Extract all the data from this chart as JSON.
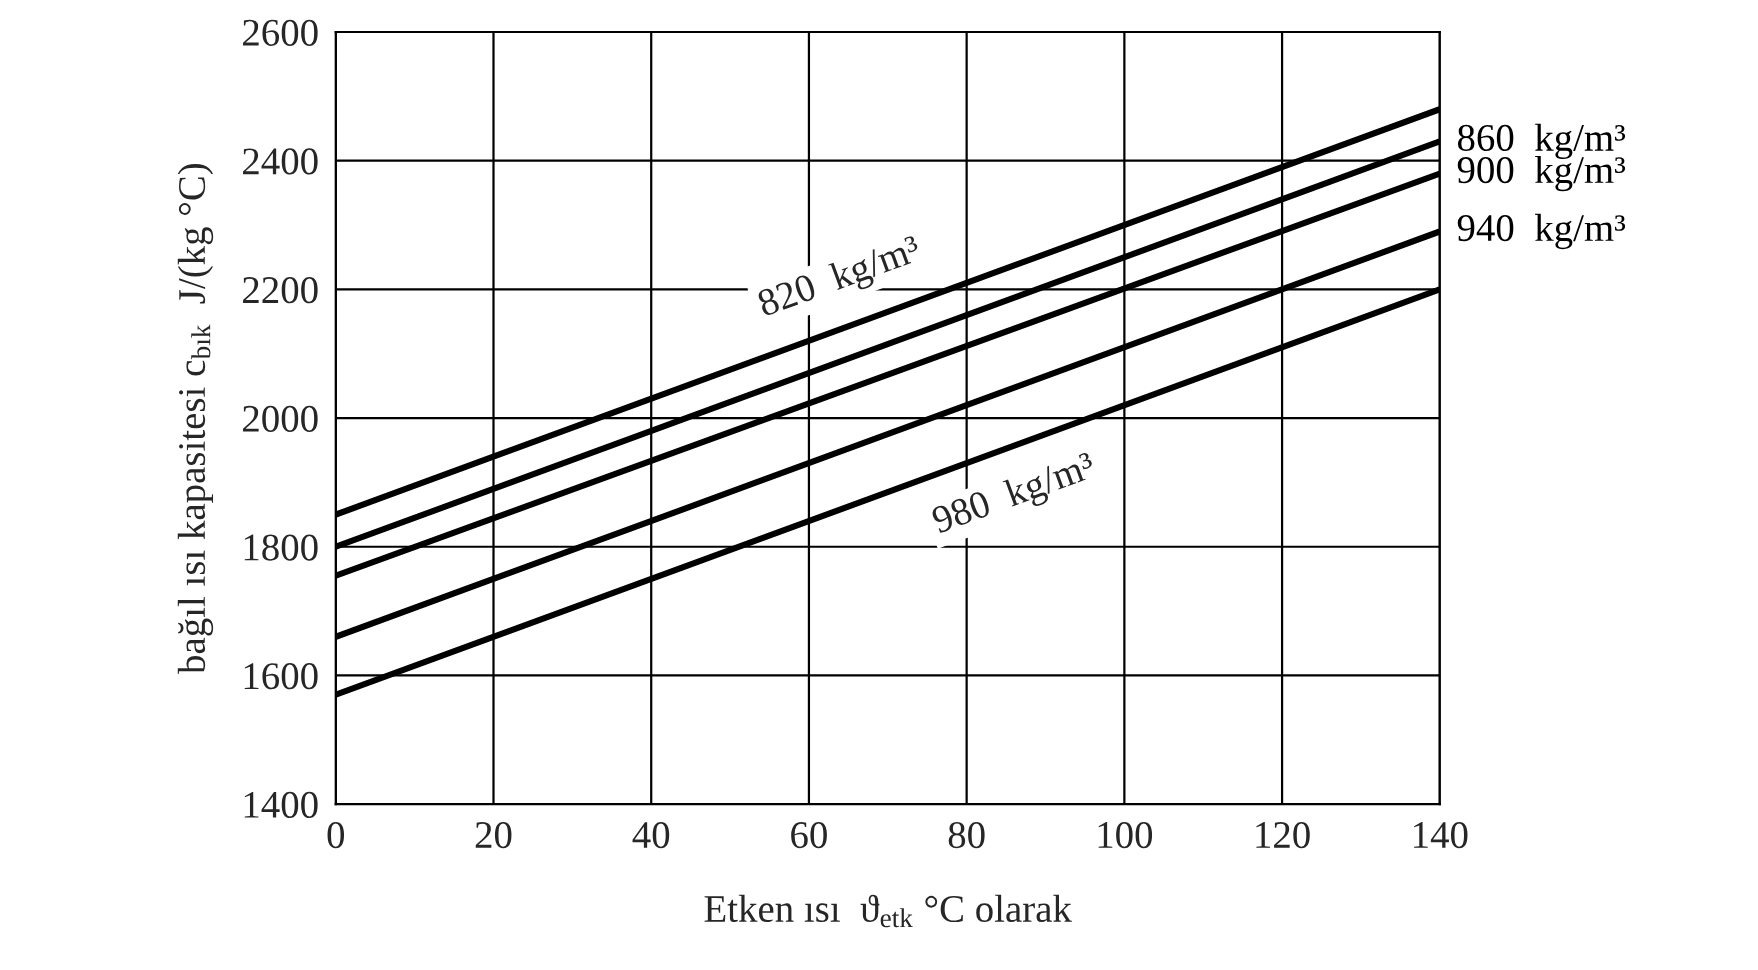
{
  "chart_data": {
    "type": "line",
    "xlabel": "Etken ısı  ϑ$_{etk}$ °C olarak",
    "ylabel": "bağıl ısı kapasitesi c$_{bık}$  J/(kg °C)",
    "x": [
      0,
      140
    ],
    "series": [
      {
        "color": "#000000",
        "values": [
          1850,
          2480
        ]
      },
      {
        "name": "860  kg/m³",
        "color": "#000000",
        "values": [
          1800,
          2430
        ]
      },
      {
        "name": "900  kg/m³",
        "color": "#000000",
        "values": [
          1755,
          2380
        ]
      },
      {
        "name": "940  kg/m³",
        "color": "#000000",
        "values": [
          1660,
          2290
        ]
      },
      {
        "color": "#000000",
        "values": [
          1570,
          2200
        ]
      }
    ],
    "annotations": [
      {
        "text": "820  kg/m³",
        "x": 66,
        "y": 2147
      },
      {
        "text": "980  kg/m³",
        "x": 84,
        "y": 1948
      }
    ],
    "xlim": [
      0,
      140
    ],
    "xticks": [
      0,
      20,
      40,
      60,
      80,
      100,
      120,
      140
    ],
    "ylim": [
      1400,
      2600
    ],
    "yticks": [
      1400,
      1600,
      1800,
      2000,
      2200,
      2400,
      2600
    ],
    "grid": true,
    "marker": "none",
    "line_style": "solid"
  }
}
